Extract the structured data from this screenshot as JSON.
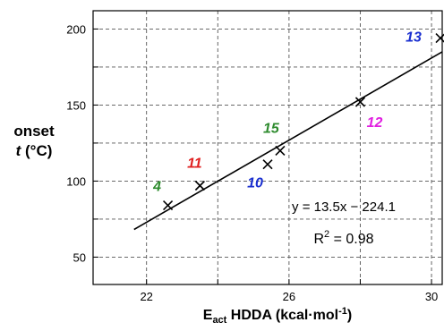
{
  "chart_data": {
    "type": "scatter",
    "xlabel": {
      "main": "E",
      "sub": "act",
      "after_sub": " HDDA (kcal·mol",
      "sup": "-1",
      "close": ")"
    },
    "ylabel": {
      "line1": "onset",
      "tvar": "t",
      "units": " (°C)"
    },
    "xlim": [
      20.5,
      30.3
    ],
    "ylim": [
      32,
      212
    ],
    "x_ticks": [
      22,
      24,
      26,
      28,
      30
    ],
    "x_tick_labels": [
      "22",
      "",
      "26",
      "",
      "30"
    ],
    "y_ticks": [
      50,
      75,
      100,
      125,
      150,
      175,
      200
    ],
    "y_tick_labels": [
      "50",
      "",
      "100",
      "",
      "150",
      "",
      "200"
    ],
    "grid": true,
    "points": [
      {
        "label": "4",
        "x": 22.6,
        "y": 84,
        "color": "#2e8b2e"
      },
      {
        "label": "11",
        "x": 23.5,
        "y": 97,
        "color": "#e02020"
      },
      {
        "label": "10",
        "x": 25.4,
        "y": 111,
        "color": "#1a2fd0"
      },
      {
        "label": "15",
        "x": 25.75,
        "y": 120,
        "color": "#2e8b2e"
      },
      {
        "label": "12",
        "x": 28.0,
        "y": 152,
        "color": "#e020e0"
      },
      {
        "label": "13",
        "x": 30.25,
        "y": 194,
        "color": "#1a2fd0"
      }
    ],
    "fit": {
      "slope": 13.5,
      "intercept": -224.1,
      "x_range": [
        21.65,
        30.3
      ]
    },
    "equation": "y = 13.5x − 224.1",
    "r2": {
      "main": "R",
      "sup": "2",
      "rest": " = 0.98"
    }
  }
}
